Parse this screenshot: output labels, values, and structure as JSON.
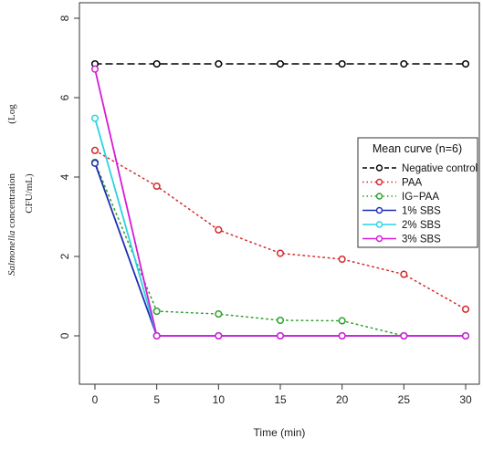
{
  "chart_data": {
    "type": "line",
    "title": "",
    "xlabel": "Time (min)",
    "ylabel": {
      "italic": "Salmonella",
      "rest": " concentration",
      "unit_open": "(Log",
      "unit_close": "CFU/mL)"
    },
    "x": [
      0,
      5,
      10,
      15,
      20,
      25,
      30
    ],
    "xlim": [
      0,
      30
    ],
    "ylim": [
      -1,
      8
    ],
    "x_ticks": [
      0,
      5,
      10,
      15,
      20,
      25,
      30
    ],
    "y_ticks": [
      0,
      2,
      4,
      6,
      8
    ],
    "grid": false,
    "legend": {
      "title": "Mean curve (n=6)",
      "placement": "right"
    },
    "series": [
      {
        "name": "Negative control",
        "color": "#000000",
        "dash": "dashed",
        "x": [
          0,
          5,
          10,
          15,
          20,
          25,
          30
        ],
        "values": [
          6.85,
          6.85,
          6.85,
          6.85,
          6.85,
          6.85,
          6.85
        ]
      },
      {
        "name": "PAA",
        "color": "#d62728",
        "dash": "dotted",
        "x": [
          0,
          5,
          10,
          15,
          20,
          25,
          30
        ],
        "values": [
          4.67,
          3.77,
          2.67,
          2.08,
          1.93,
          1.55,
          0.67
        ]
      },
      {
        "name": "IG−PAA",
        "color": "#2ca02c",
        "dash": "dotted",
        "x": [
          0,
          5,
          10,
          15,
          20,
          25,
          30
        ],
        "values": [
          4.37,
          0.62,
          0.55,
          0.39,
          0.38,
          0.0,
          0.0
        ]
      },
      {
        "name": "1% SBS",
        "color": "#1f2fb4",
        "dash": "solid",
        "x": [
          0,
          5,
          10,
          15,
          20,
          25,
          30
        ],
        "values": [
          4.35,
          0.0,
          0.0,
          0.0,
          0.0,
          0.0,
          0.0
        ]
      },
      {
        "name": "2% SBS",
        "color": "#2bd3e0",
        "dash": "solid",
        "x": [
          0,
          5,
          10,
          15,
          20,
          25,
          30
        ],
        "values": [
          5.48,
          0.0,
          0.0,
          0.0,
          0.0,
          0.0,
          0.0
        ]
      },
      {
        "name": "3% SBS",
        "color": "#d81ad8",
        "dash": "solid",
        "x": [
          0,
          5,
          10,
          15,
          20,
          25,
          30
        ],
        "values": [
          6.72,
          0.0,
          0.0,
          0.0,
          0.0,
          0.0,
          0.0
        ]
      }
    ]
  }
}
